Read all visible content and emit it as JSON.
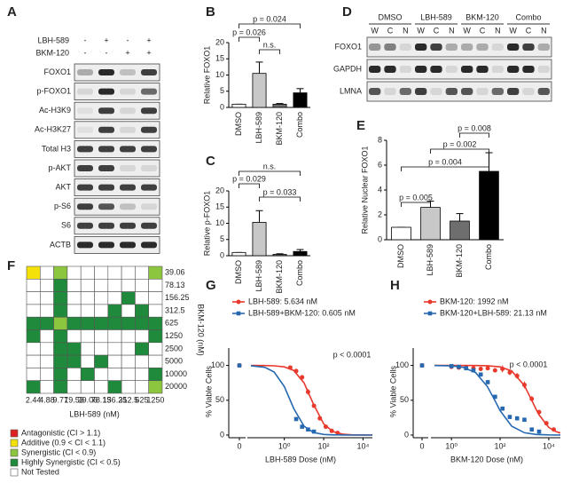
{
  "blots": [
    {
      "label": "A",
      "treatments": [
        {
          "name": "LBH-589",
          "signs": [
            "-",
            "+",
            "-",
            "+"
          ]
        },
        {
          "name": "BKM-120",
          "signs": [
            "-",
            "-",
            "+",
            "+"
          ]
        }
      ],
      "rows": [
        "FOXO1",
        "p-FOXO1",
        "Ac-H3K9",
        "Ac-H3K27",
        "Total H3",
        "p-AKT",
        "AKT",
        "p-S6",
        "S6",
        "ACTB"
      ]
    },
    {
      "label": "D",
      "conditions": [
        "DMSO",
        "LBH-589",
        "BKM-120",
        "Combo"
      ],
      "lanes": [
        "W",
        "C",
        "N",
        "W",
        "C",
        "N",
        "W",
        "C",
        "N",
        "W",
        "C",
        "N"
      ],
      "rows": [
        "FOXO1",
        "GAPDH",
        "LMNA"
      ]
    }
  ],
  "chart_data": [
    {
      "type": "bar",
      "label": "B",
      "y_label": "Relative FOXO1",
      "categories": [
        "DMSO",
        "LBH-589",
        "BKM-120",
        "Combo"
      ],
      "values": [
        1,
        10.5,
        1,
        4.5
      ],
      "errors": [
        0,
        3.5,
        0.2,
        1.3
      ],
      "colors": [
        "#ffffff",
        "#c8c8c8",
        "#6e6e6e",
        "#000000"
      ],
      "ylim": [
        0,
        20
      ],
      "yticks": [
        0,
        5,
        10,
        15,
        20
      ],
      "annotations": [
        {
          "text": "p = 0.024",
          "between": [
            "DMSO",
            "Combo"
          ]
        },
        {
          "text": "p = 0.026",
          "between": [
            "DMSO",
            "LBH-589"
          ]
        },
        {
          "text": "n.s.",
          "between": [
            "LBH-589",
            "BKM-120"
          ]
        }
      ]
    },
    {
      "type": "bar",
      "label": "C",
      "y_label": "Relative p-FOXO1",
      "categories": [
        "DMSO",
        "LBH-589",
        "BKM-120",
        "Combo"
      ],
      "values": [
        1,
        10.3,
        0.4,
        1.3
      ],
      "errors": [
        0,
        3.6,
        0.2,
        0.6
      ],
      "colors": [
        "#ffffff",
        "#c8c8c8",
        "#6e6e6e",
        "#000000"
      ],
      "ylim": [
        0,
        20
      ],
      "yticks": [
        0,
        5,
        10,
        15,
        20
      ],
      "annotations": [
        {
          "text": "n.s.",
          "between": [
            "DMSO",
            "Combo"
          ]
        },
        {
          "text": "p = 0.029",
          "between": [
            "DMSO",
            "LBH-589"
          ]
        },
        {
          "text": "p = 0.033",
          "between": [
            "LBH-589",
            "Combo"
          ]
        }
      ]
    },
    {
      "type": "bar",
      "label": "E",
      "y_label": "Relative Nuclear FOXO1",
      "categories": [
        "DMSO",
        "LBH-589",
        "BKM-120",
        "Combo"
      ],
      "values": [
        1,
        2.6,
        1.5,
        5.5
      ],
      "errors": [
        0,
        0.5,
        0.6,
        1.5
      ],
      "colors": [
        "#ffffff",
        "#c8c8c8",
        "#6e6e6e",
        "#000000"
      ],
      "ylim": [
        0,
        8
      ],
      "yticks": [
        0,
        2,
        4,
        6,
        8
      ],
      "annotations": [
        {
          "text": "p = 0.008",
          "between": [
            "BKM-120",
            "Combo"
          ]
        },
        {
          "text": "p = 0.002",
          "between": [
            "LBH-589",
            "Combo"
          ]
        },
        {
          "text": "p = 0.004",
          "between": [
            "DMSO",
            "Combo"
          ]
        },
        {
          "text": "p = 0.005",
          "between": [
            "DMSO",
            "LBH-589"
          ]
        }
      ]
    },
    {
      "type": "heatmap",
      "label": "F",
      "x_label": "LBH-589 (nM)",
      "y_label": "BKM-120 (nM)",
      "x": [
        2.44,
        4.88,
        9.77,
        19.53,
        39.06,
        78.13,
        156.25,
        312.5,
        625,
        1250
      ],
      "y": [
        39.06,
        78.13,
        156.25,
        312.5,
        625,
        1250,
        2500,
        5000,
        10000,
        20000
      ],
      "cells": [
        [
          1,
          4,
          2,
          4,
          4,
          4,
          4,
          4,
          4,
          2
        ],
        [
          4,
          4,
          3,
          4,
          4,
          4,
          4,
          4,
          4,
          4
        ],
        [
          4,
          4,
          3,
          4,
          4,
          4,
          4,
          3,
          4,
          4
        ],
        [
          4,
          4,
          3,
          4,
          4,
          4,
          3,
          4,
          3,
          4
        ],
        [
          3,
          3,
          2,
          3,
          3,
          3,
          3,
          3,
          3,
          3
        ],
        [
          3,
          4,
          3,
          4,
          4,
          4,
          4,
          4,
          4,
          3
        ],
        [
          4,
          4,
          3,
          3,
          4,
          4,
          4,
          4,
          3,
          4
        ],
        [
          4,
          4,
          3,
          3,
          4,
          3,
          4,
          4,
          4,
          4
        ],
        [
          4,
          4,
          3,
          4,
          3,
          4,
          4,
          4,
          4,
          3
        ],
        [
          3,
          4,
          3,
          4,
          4,
          4,
          3,
          4,
          4,
          2
        ]
      ],
      "legend": [
        {
          "label": "Antagonistic (CI > 1.1)",
          "color": "#e02020"
        },
        {
          "label": "Additive (0.9 < CI < 1.1)",
          "color": "#f5e10a"
        },
        {
          "label": "Synergistic (CI < 0.9)",
          "color": "#8cc63e"
        },
        {
          "label": "Highly Synergistic (CI < 0.5)",
          "color": "#1f8a3c"
        },
        {
          "label": "Not Tested",
          "color": "#ffffff"
        }
      ]
    },
    {
      "type": "scatter",
      "label": "G",
      "x_label": "LBH-589 Dose (nM)",
      "y_label": "% Viable Cells",
      "annotation": "p < 0.0001",
      "x_scale": "log",
      "xlim": [
        0.02,
        30000
      ],
      "ylim": [
        0,
        125
      ],
      "yticks": [
        0,
        50,
        100
      ],
      "xticks": [
        0,
        {
          "value": 1,
          "label": "10⁰"
        },
        {
          "value": 100,
          "label": "10²"
        },
        {
          "value": 10000,
          "label": "10⁴"
        }
      ],
      "series": [
        {
          "name": "LBH-589: 5.634 nM",
          "color": "#e8392c",
          "marker": "circle",
          "x": [
            0,
            2,
            4,
            8,
            16,
            32,
            64,
            128,
            256,
            512
          ],
          "values": [
            100,
            97,
            92,
            83,
            62,
            42,
            24,
            12,
            6,
            3
          ],
          "errors": [
            3,
            2,
            3,
            3,
            4,
            3,
            3,
            2,
            1,
            1
          ],
          "fit_x": [
            0.02,
            0.1,
            0.3,
            1,
            3,
            10,
            30,
            100,
            300,
            1000,
            3000,
            10000,
            30000
          ],
          "fit_values": [
            99.98,
            99.87,
            99.5,
            97.9,
            92.7,
            75,
            44.5,
            15.9,
            4.8,
            1.2,
            0.3,
            0.1,
            0
          ]
        },
        {
          "name": "LBH-589+BKM-120: 0.605 nM",
          "color": "#2769b0",
          "marker": "square",
          "x": [
            0,
            4,
            8,
            16,
            32
          ],
          "values": [
            100,
            23,
            12,
            8,
            5
          ],
          "errors": [
            2,
            2,
            2,
            1,
            1
          ],
          "fit_x": [
            0.02,
            0.1,
            0.3,
            1,
            3,
            10,
            30,
            100,
            300,
            1000,
            3000,
            10000,
            30000
          ],
          "fit_values": [
            99.6,
            97.3,
            90.7,
            69.7,
            38.1,
            12.7,
            3.7,
            0.9,
            0.2,
            0.1,
            0,
            0,
            0
          ]
        }
      ]
    },
    {
      "type": "scatter",
      "label": "H",
      "x_label": "BKM-120 Dose (nM)",
      "y_label": "% Viable Cells",
      "annotation": "p < 0.0001",
      "x_scale": "log",
      "xlim": [
        0.2,
        30000
      ],
      "ylim": [
        0,
        125
      ],
      "yticks": [
        0,
        50,
        100
      ],
      "xticks": [
        0,
        {
          "value": 1,
          "label": "10⁰"
        },
        {
          "value": 100,
          "label": "10²"
        },
        {
          "value": 10000,
          "label": "10⁴"
        }
      ],
      "series": [
        {
          "name": "BKM-120: 1992 nM",
          "color": "#e8392c",
          "marker": "circle",
          "x": [
            0,
            1,
            2,
            4,
            8,
            16,
            31,
            62,
            125,
            250,
            500,
            1000,
            2000,
            4000,
            8000,
            16000
          ],
          "values": [
            100,
            98,
            97,
            97,
            96,
            95,
            96,
            93,
            95,
            90,
            85,
            72,
            52,
            33,
            17,
            8
          ],
          "errors": [
            3,
            2,
            2,
            2,
            3,
            3,
            2,
            3,
            5,
            4,
            4,
            5,
            4,
            3,
            2,
            2
          ],
          "fit_x": [
            0.2,
            1,
            10,
            30,
            100,
            300,
            1000,
            2000,
            3000,
            4000,
            10000,
            20000,
            30000
          ],
          "fit_values": [
            100,
            100,
            99.9,
            99.6,
            98,
            92.2,
            71.1,
            50,
            37.1,
            28.9,
            11,
            4.8,
            2.9
          ]
        },
        {
          "name": "BKM-120+LBH-589: 21.13 nM",
          "color": "#2769b0",
          "marker": "square",
          "x": [
            0,
            1,
            2,
            4,
            8,
            16,
            31,
            62,
            125,
            250,
            500,
            1000,
            2000,
            4000
          ],
          "values": [
            100,
            99,
            98,
            96,
            93,
            87,
            76,
            55,
            38,
            26,
            24,
            22,
            8,
            5
          ],
          "errors": [
            3,
            3,
            3,
            3,
            3,
            3,
            3,
            3,
            3,
            3,
            3,
            3,
            2,
            2
          ],
          "fit_x": [
            0.2,
            1,
            3,
            10,
            30,
            60,
            100,
            300,
            1000,
            3000,
            10000,
            30000
          ],
          "fit_values": [
            99.9,
            99.3,
            97.3,
            89.6,
            69.7,
            50,
            35.1,
            12.7,
            3.3,
            0.9,
            0.2,
            0.1
          ]
        }
      ]
    }
  ]
}
